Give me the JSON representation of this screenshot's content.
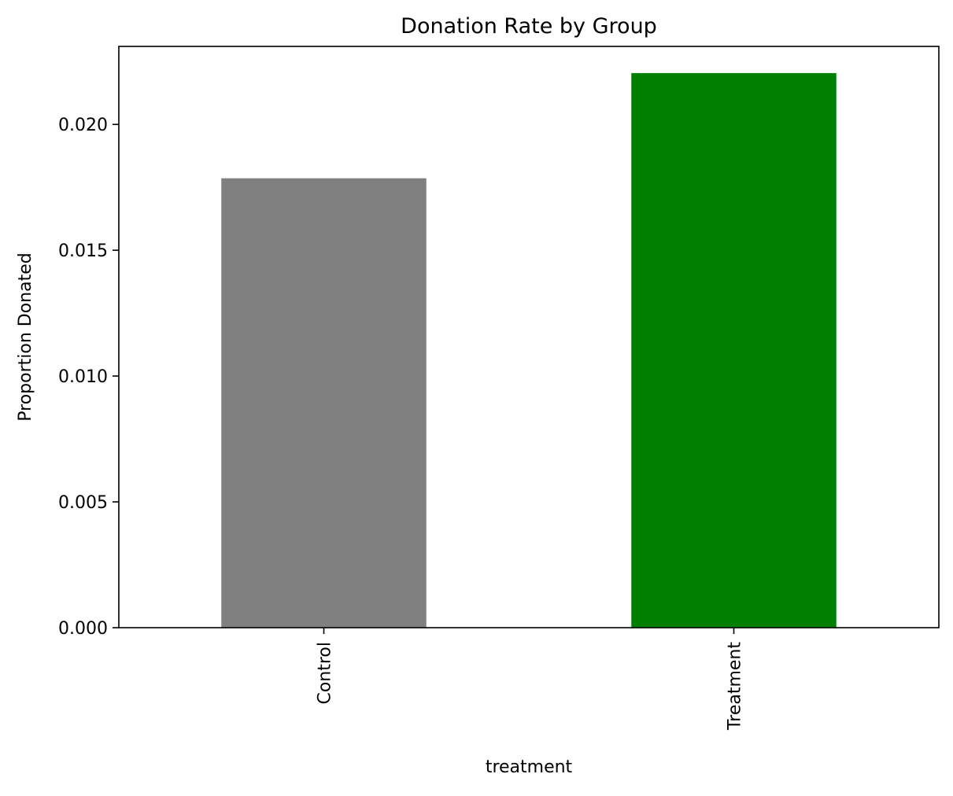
{
  "chart_data": {
    "type": "bar",
    "title": "Donation Rate by Group",
    "xlabel": "treatment",
    "ylabel": "Proportion Donated",
    "categories": [
      "Control",
      "Treatment"
    ],
    "values": [
      0.01786,
      0.02204
    ],
    "bar_colors": [
      "#808080",
      "#008000"
    ],
    "ylim": [
      0,
      0.0231
    ],
    "yticks": [
      0,
      0.005,
      0.01,
      0.015,
      0.02
    ],
    "ytick_labels": [
      "0.000",
      "0.005",
      "0.010",
      "0.015",
      "0.020"
    ],
    "grid": false,
    "legend": "none"
  }
}
